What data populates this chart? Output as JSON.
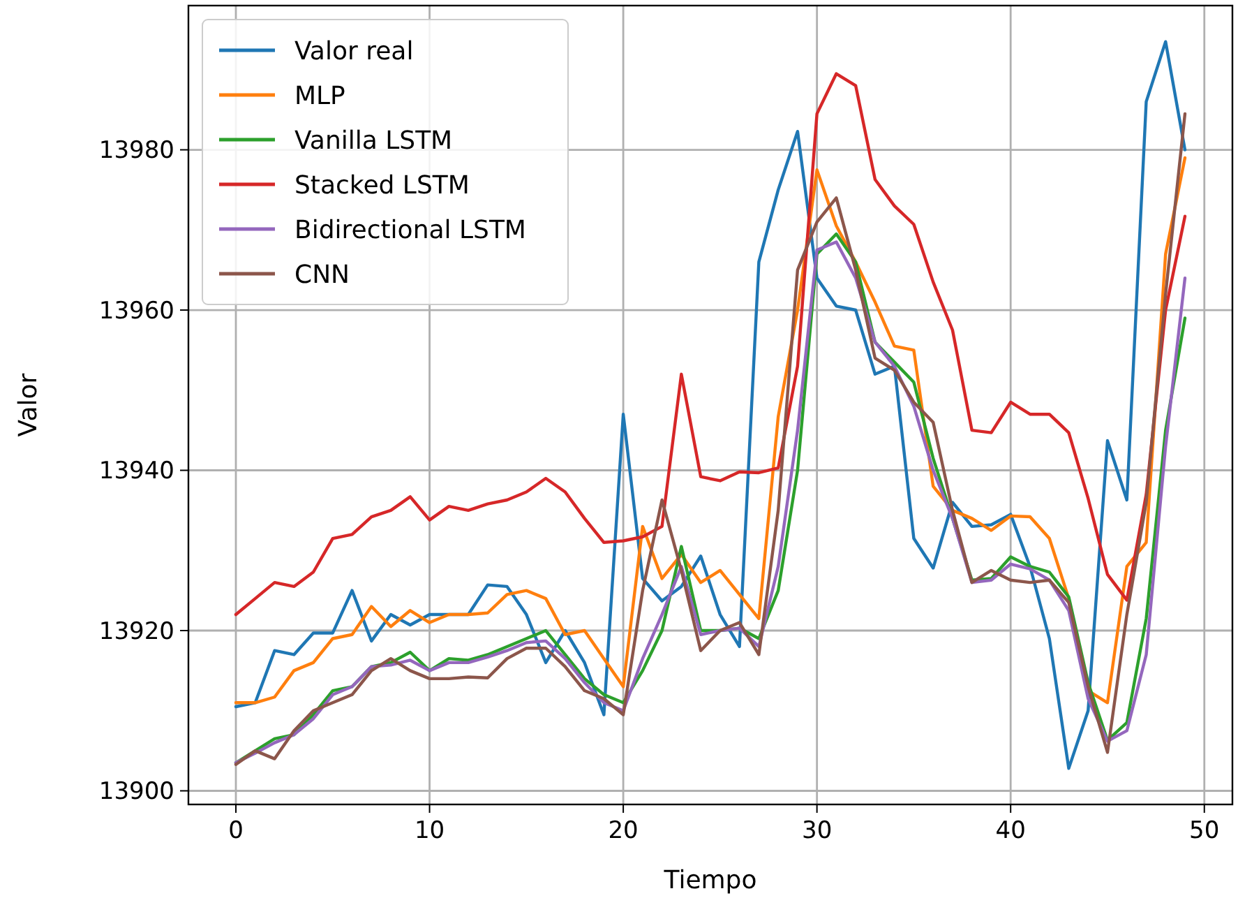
{
  "chart_data": {
    "type": "line",
    "xlabel": "Tiempo",
    "ylabel": "Valor",
    "x": [
      0,
      1,
      2,
      3,
      4,
      5,
      6,
      7,
      8,
      9,
      10,
      11,
      12,
      13,
      14,
      15,
      16,
      17,
      18,
      19,
      20,
      21,
      22,
      23,
      24,
      25,
      26,
      27,
      28,
      29,
      30,
      31,
      32,
      33,
      34,
      35,
      36,
      37,
      38,
      39,
      40,
      41,
      42,
      43,
      44,
      45,
      46,
      47,
      48,
      49
    ],
    "xlim": [
      -2.45,
      51.45
    ],
    "xticks": [
      0,
      10,
      20,
      30,
      40,
      50
    ],
    "ylim": [
      13898.3,
      13998
    ],
    "yticks": [
      13900,
      13920,
      13940,
      13960,
      13980
    ],
    "grid": true,
    "legend": "top left",
    "line_style": "solid",
    "marker": "none",
    "series": [
      {
        "name": "Valor real",
        "color": "#1f77b4",
        "values": [
          13910.5,
          13911,
          13917.5,
          13917,
          13919.7,
          13919.7,
          13925,
          13918.7,
          13922,
          13920.7,
          13922,
          13922,
          13922,
          13925.7,
          13925.5,
          13922,
          13916,
          13920,
          13916,
          13909.5,
          13947,
          13926.5,
          13923.7,
          13925.5,
          13929.3,
          13922,
          13918,
          13966,
          13975,
          13982.3,
          13964,
          13960.5,
          13960,
          13952,
          13953,
          13931.5,
          13927.8,
          13936,
          13933,
          13933.2,
          13934.5,
          13928,
          13919,
          13902.8,
          13910,
          13943.7,
          13936.3,
          13986,
          13993.5,
          13980
        ]
      },
      {
        "name": "MLP",
        "color": "#ff7f0e",
        "values": [
          13911,
          13911,
          13911.7,
          13915,
          13916,
          13919,
          13919.5,
          13923,
          13920.5,
          13922.5,
          13921,
          13922,
          13922,
          13922.2,
          13924.5,
          13925,
          13924,
          13919.5,
          13920,
          13916.5,
          13913,
          13933,
          13926.5,
          13929.5,
          13926,
          13927.5,
          13924.5,
          13921.5,
          13946.7,
          13960,
          13977.5,
          13970.5,
          13966,
          13961,
          13955.5,
          13955,
          13938,
          13935,
          13934,
          13932.5,
          13934.3,
          13934.2,
          13931.5,
          13924,
          13912.5,
          13911,
          13928,
          13931,
          13967,
          13979
        ]
      },
      {
        "name": "Vanilla LSTM",
        "color": "#2ca02c",
        "values": [
          13903.5,
          13905,
          13906.5,
          13907,
          13909.5,
          13912.5,
          13913,
          13915.5,
          13916,
          13917.3,
          13915,
          13916.5,
          13916.3,
          13917,
          13918,
          13919,
          13920,
          13917,
          13914,
          13912,
          13911,
          13915,
          13920,
          13930.5,
          13920,
          13920,
          13920.3,
          13919,
          13925,
          13940,
          13967,
          13969.5,
          13966,
          13956,
          13953.5,
          13951,
          13941.5,
          13934,
          13926.3,
          13926.5,
          13929.2,
          13928,
          13927.3,
          13924.2,
          13913.5,
          13906.3,
          13908.5,
          13921.5,
          13945,
          13959
        ]
      },
      {
        "name": "Stacked LSTM",
        "color": "#d62728",
        "values": [
          13922,
          13924,
          13926,
          13925.5,
          13927.3,
          13931.5,
          13932,
          13934.2,
          13935,
          13936.7,
          13933.8,
          13935.5,
          13935,
          13935.8,
          13936.3,
          13937.3,
          13939,
          13937.3,
          13934,
          13931,
          13931.2,
          13931.7,
          13933,
          13952,
          13939.2,
          13938.7,
          13939.8,
          13939.7,
          13940.3,
          13953,
          13984.5,
          13989.5,
          13988,
          13976.3,
          13973,
          13970.7,
          13963.5,
          13957.5,
          13945,
          13944.7,
          13948.5,
          13947,
          13947,
          13944.7,
          13936.5,
          13927,
          13923.8,
          13937,
          13960,
          13971.7
        ]
      },
      {
        "name": "Bidirectional LSTM",
        "color": "#9467bd",
        "values": [
          13903.5,
          13904.7,
          13906,
          13907,
          13909,
          13912,
          13913,
          13915.5,
          13915.7,
          13916.3,
          13915,
          13916,
          13916,
          13916.7,
          13917.5,
          13918.5,
          13918.7,
          13916.5,
          13913.5,
          13911,
          13910,
          13916.5,
          13922,
          13928,
          13919.5,
          13920,
          13920.3,
          13918,
          13928,
          13945,
          13967.5,
          13968.5,
          13964,
          13956,
          13953,
          13948,
          13940,
          13934,
          13926,
          13926.3,
          13928.3,
          13927.7,
          13926.3,
          13922.5,
          13911.5,
          13906.2,
          13907.5,
          13917,
          13943,
          13964
        ]
      },
      {
        "name": "CNN",
        "color": "#8c564b",
        "values": [
          13903.3,
          13905,
          13904,
          13907.5,
          13910,
          13911,
          13912,
          13915,
          13916.5,
          13915,
          13914,
          13914,
          13914.2,
          13914.1,
          13916.5,
          13917.8,
          13917.8,
          13915.5,
          13912.5,
          13911.5,
          13909.5,
          13925,
          13936.3,
          13927.5,
          13917.5,
          13920,
          13921,
          13917,
          13935,
          13965,
          13971,
          13974,
          13965,
          13954,
          13952.5,
          13948.5,
          13946,
          13935,
          13926,
          13927.5,
          13926.3,
          13926,
          13926.3,
          13923.5,
          13913,
          13904.8,
          13922,
          13936,
          13962,
          13984.5
        ]
      }
    ]
  }
}
